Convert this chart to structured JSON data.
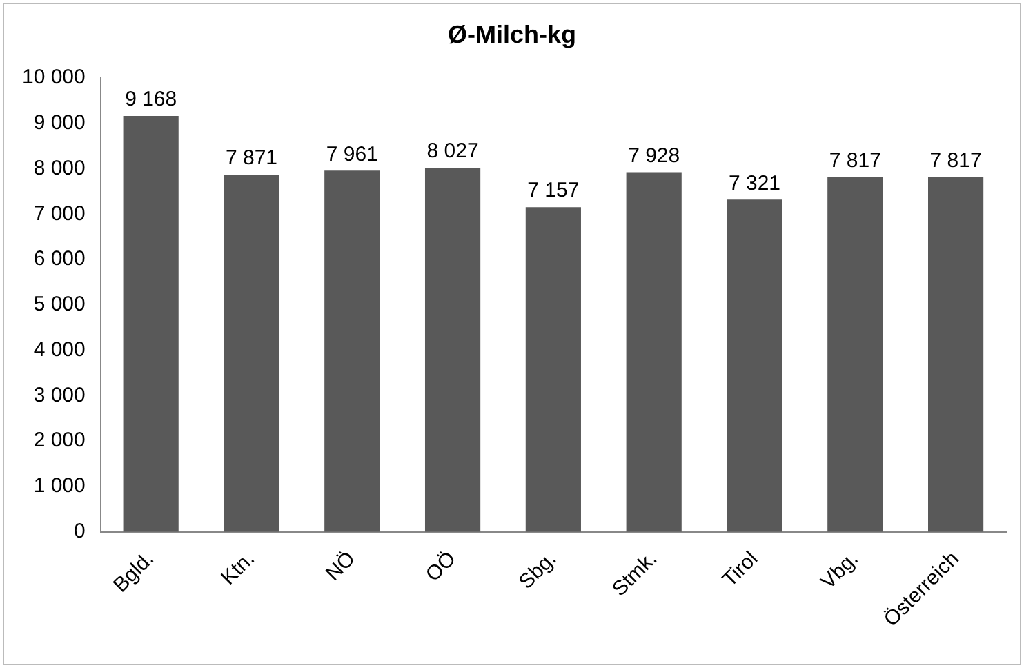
{
  "chart_data": {
    "type": "bar",
    "title": "Ø-Milch-kg",
    "categories": [
      "Bgld.",
      "Ktn.",
      "NÖ",
      "OÖ",
      "Sbg.",
      "Stmk.",
      "Tirol",
      "Vbg.",
      "Österreich"
    ],
    "values": [
      9168,
      7871,
      7961,
      8027,
      7157,
      7928,
      7321,
      7817,
      7817
    ],
    "value_labels": [
      "9 168",
      "7 871",
      "7 961",
      "8 027",
      "7 157",
      "7 928",
      "7 321",
      "7 817",
      "7 817"
    ],
    "color": "#595959",
    "ylim": [
      0,
      10000
    ],
    "yticks": [
      {
        "value": 0,
        "label": "0"
      },
      {
        "value": 1000,
        "label": "1 000"
      },
      {
        "value": 2000,
        "label": "2 000"
      },
      {
        "value": 3000,
        "label": "3 000"
      },
      {
        "value": 4000,
        "label": "4 000"
      },
      {
        "value": 5000,
        "label": "5 000"
      },
      {
        "value": 6000,
        "label": "6 000"
      },
      {
        "value": 7000,
        "label": "7 000"
      },
      {
        "value": 8000,
        "label": "8 000"
      },
      {
        "value": 9000,
        "label": "9 000"
      },
      {
        "value": 10000,
        "label": "10 000"
      }
    ],
    "grid": false,
    "legend": false
  }
}
